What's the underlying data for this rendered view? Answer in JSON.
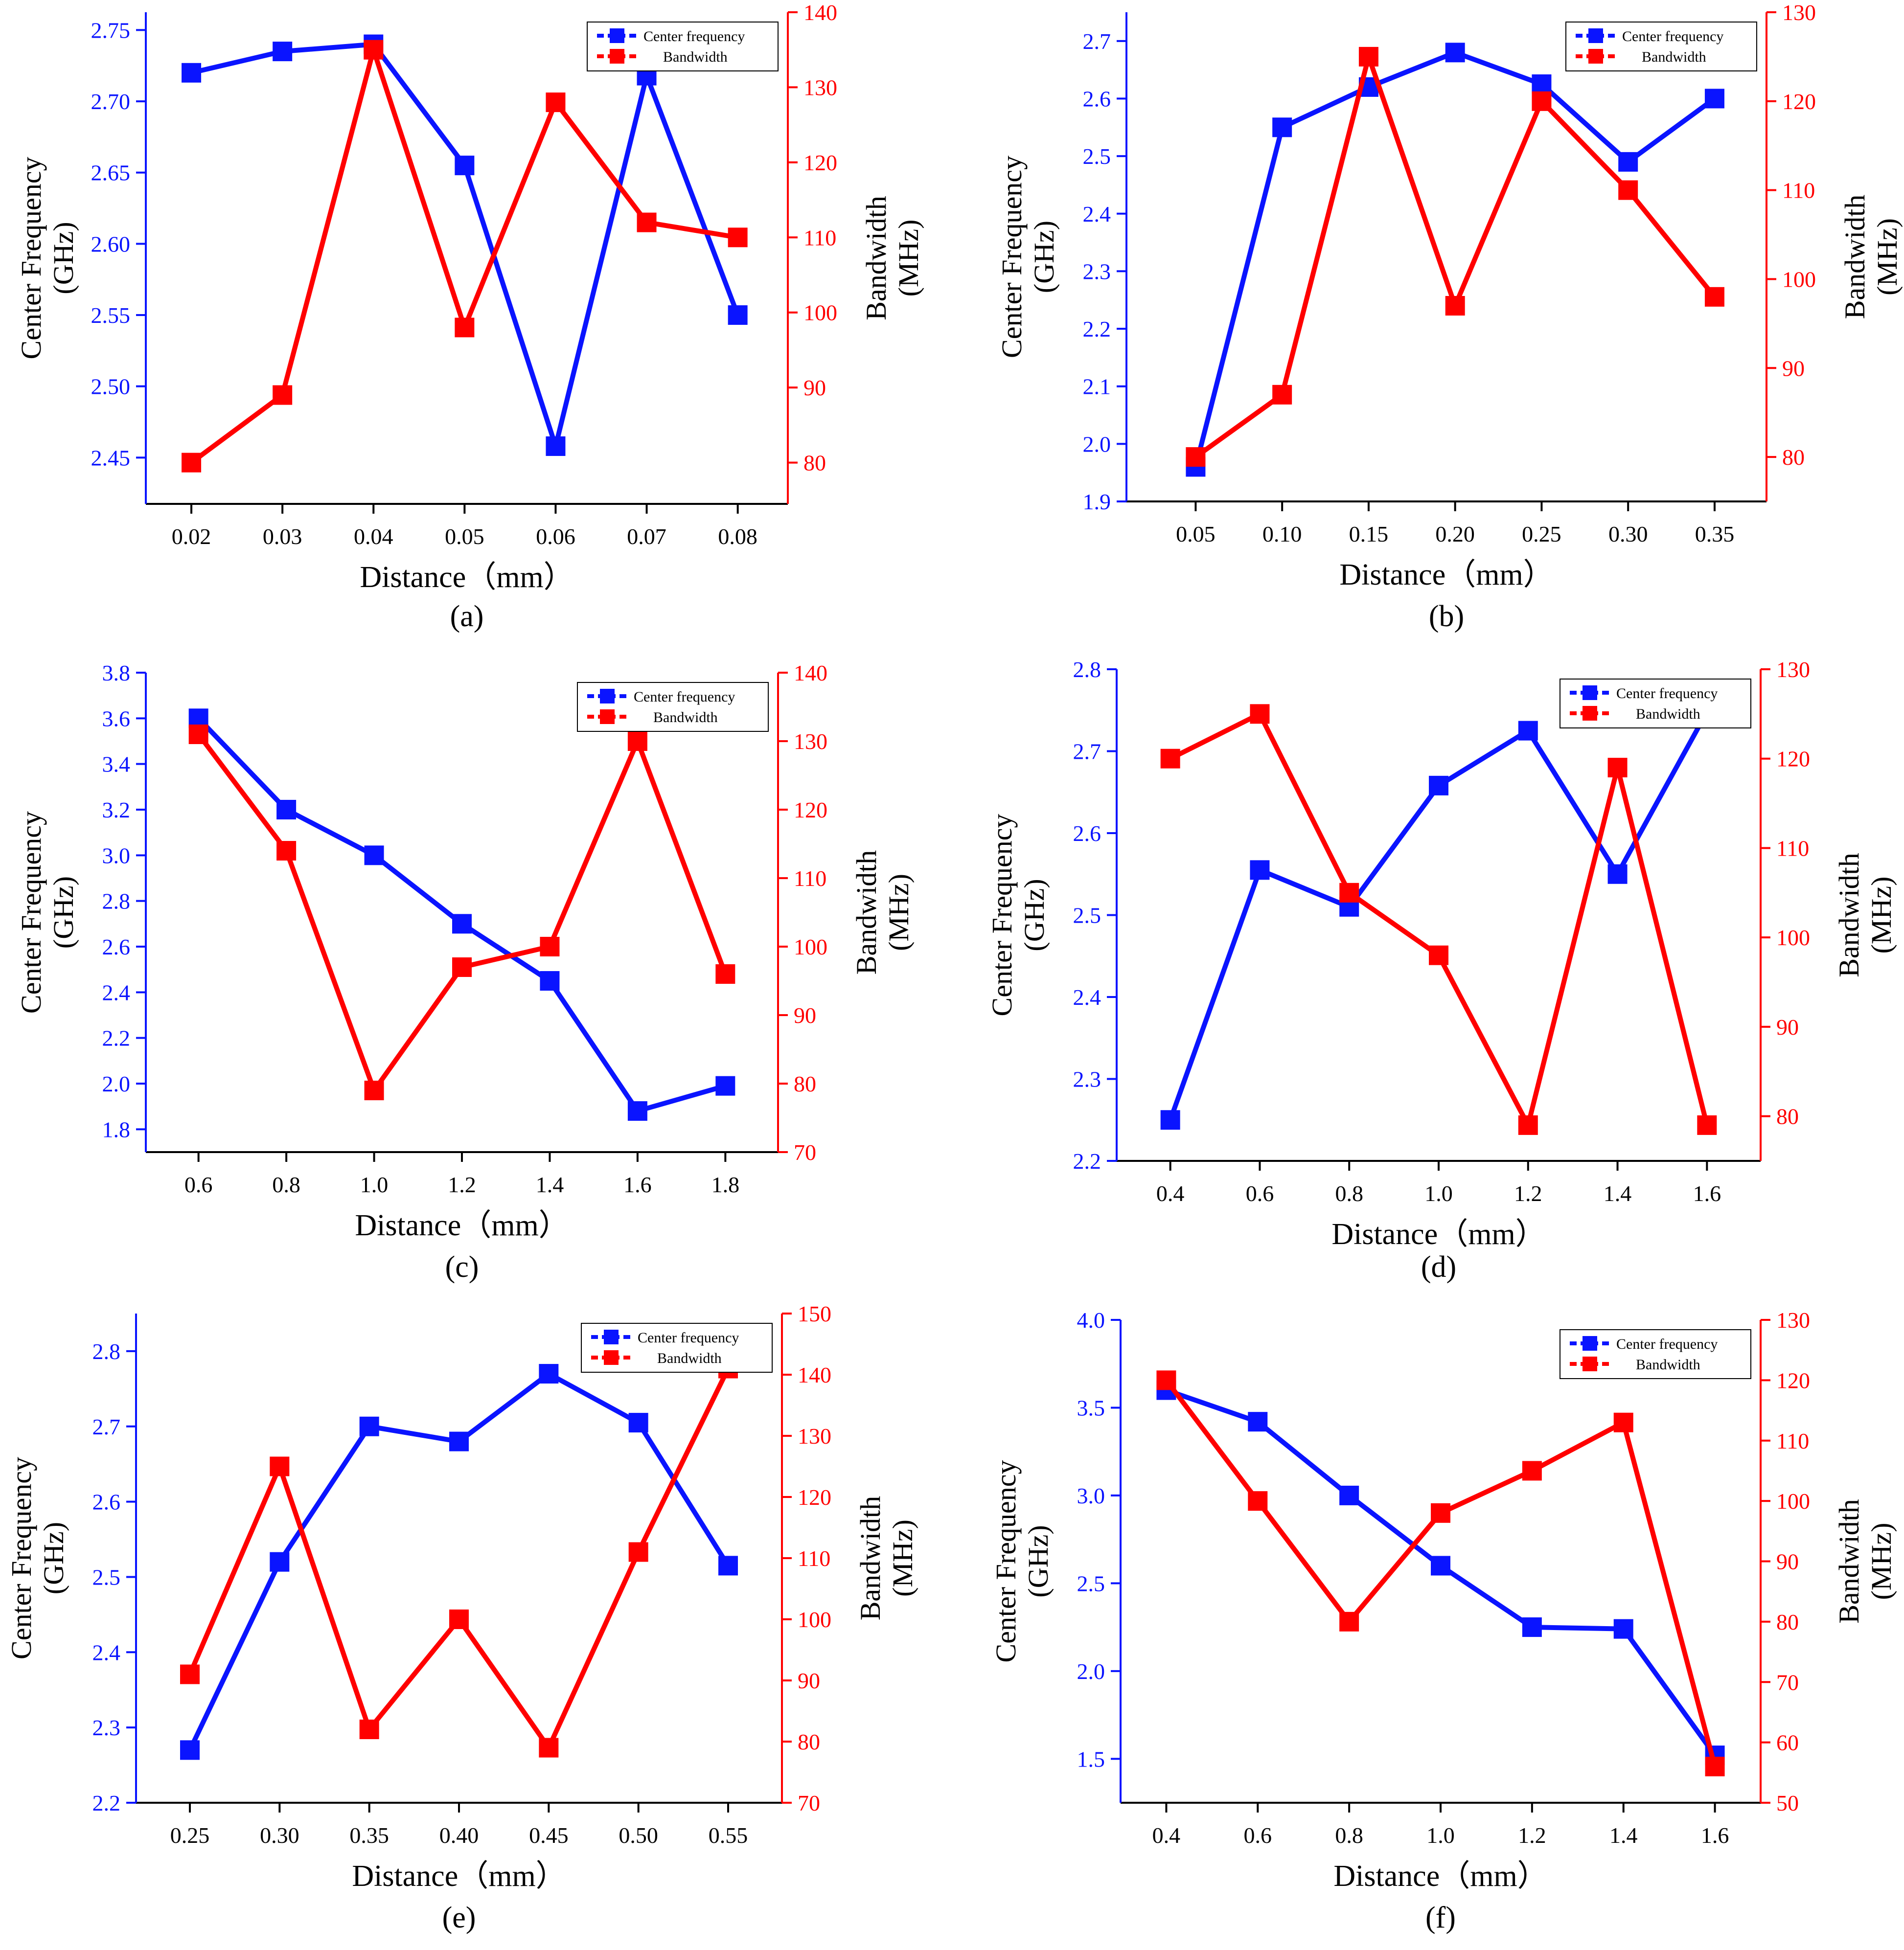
{
  "colors": {
    "blue": "#0a14ff",
    "red": "#ff0000",
    "axis": "#000000"
  },
  "chart_data": [
    {
      "type": "line",
      "panel_label": "(a)",
      "xlabel": "Distance（mm）",
      "ylabel_left": [
        "Center Frequency",
        "(GHz)"
      ],
      "ylabel_right": [
        "Bandwidth",
        "(MHz)"
      ],
      "x": [
        0.02,
        0.03,
        0.04,
        0.05,
        0.06,
        0.07,
        0.08
      ],
      "x_ticks": [
        "0.02",
        "0.03",
        "0.04",
        "0.05",
        "0.06",
        "0.07",
        "0.08"
      ],
      "xlim": [
        0.015,
        0.0855
      ],
      "ylim_left": [
        2.4175,
        2.7625
      ],
      "y_ticks_left": [
        "2.45",
        "2.50",
        "2.55",
        "2.60",
        "2.65",
        "2.70",
        "2.75"
      ],
      "ylim_right": [
        74.5,
        140
      ],
      "y_ticks_right": [
        "80",
        "90",
        "100",
        "110",
        "120",
        "130",
        "140"
      ],
      "legend": [
        "Center frequency",
        "Bandwidth"
      ],
      "series": [
        {
          "name": "Center frequency",
          "axis": "left",
          "color": "blue",
          "values": [
            2.72,
            2.735,
            2.74,
            2.655,
            2.458,
            2.718,
            2.55
          ]
        },
        {
          "name": "Bandwidth",
          "axis": "right",
          "color": "red",
          "values": [
            80,
            89,
            135,
            98,
            128,
            112,
            110
          ]
        }
      ]
    },
    {
      "type": "line",
      "panel_label": "(b)",
      "xlabel": "Distance（mm）",
      "ylabel_left": [
        "Center Frequency",
        "(GHz)"
      ],
      "ylabel_right": [
        "Bandwidth",
        "(MHz)"
      ],
      "x": [
        0.05,
        0.1,
        0.15,
        0.2,
        0.25,
        0.3,
        0.35
      ],
      "x_ticks": [
        "0.05",
        "0.10",
        "0.15",
        "0.20",
        "0.25",
        "0.30",
        "0.35"
      ],
      "xlim": [
        0.01,
        0.38
      ],
      "ylim_left": [
        1.9,
        2.75
      ],
      "y_ticks_left": [
        "1.9",
        "2.0",
        "2.1",
        "2.2",
        "2.3",
        "2.4",
        "2.5",
        "2.6",
        "2.7"
      ],
      "ylim_right": [
        75,
        130
      ],
      "y_ticks_right": [
        "80",
        "90",
        "100",
        "110",
        "120",
        "130"
      ],
      "legend": [
        "Center frequency",
        "Bandwidth"
      ],
      "series": [
        {
          "name": "Center frequency",
          "axis": "left",
          "color": "blue",
          "values": [
            1.96,
            2.55,
            2.62,
            2.68,
            2.625,
            2.49,
            2.6
          ]
        },
        {
          "name": "Bandwidth",
          "axis": "right",
          "color": "red",
          "values": [
            80,
            87,
            125,
            97,
            120,
            110,
            98
          ]
        }
      ]
    },
    {
      "type": "line",
      "panel_label": "(c)",
      "xlabel": "Distance（mm）",
      "ylabel_left": [
        "Center Frequency",
        "(GHz)"
      ],
      "ylabel_right": [
        "Bandwidth",
        "(MHz)"
      ],
      "x": [
        0.6,
        0.8,
        1.0,
        1.2,
        1.4,
        1.6,
        1.8
      ],
      "x_ticks": [
        "0.6",
        "0.8",
        "1.0",
        "1.2",
        "1.4",
        "1.6",
        "1.8"
      ],
      "xlim": [
        0.48,
        1.92
      ],
      "ylim_left": [
        1.7,
        3.8
      ],
      "y_ticks_left": [
        "1.8",
        "2.0",
        "2.2",
        "2.4",
        "2.6",
        "2.8",
        "3.0",
        "3.2",
        "3.4",
        "3.6",
        "3.8"
      ],
      "ylim_right": [
        70,
        140
      ],
      "y_ticks_right": [
        "70",
        "80",
        "90",
        "100",
        "110",
        "120",
        "130",
        "140"
      ],
      "legend": [
        "Center frequency",
        "Bandwidth"
      ],
      "series": [
        {
          "name": "Center frequency",
          "axis": "left",
          "color": "blue",
          "values": [
            3.6,
            3.2,
            3.0,
            2.7,
            2.45,
            1.88,
            1.99
          ]
        },
        {
          "name": "Bandwidth",
          "axis": "right",
          "color": "red",
          "values": [
            131,
            114,
            79,
            97,
            100,
            130,
            96
          ]
        }
      ]
    },
    {
      "type": "line",
      "panel_label": "(d)",
      "xlabel": "Distance（mm）",
      "ylabel_left": [
        "Center Frequency",
        "(GHz)"
      ],
      "ylabel_right": [
        "Bandwidth",
        "(MHz)"
      ],
      "x": [
        0.4,
        0.6,
        0.8,
        1.0,
        1.2,
        1.4,
        1.6
      ],
      "x_ticks": [
        "0.4",
        "0.6",
        "0.8",
        "1.0",
        "1.2",
        "1.4",
        "1.6"
      ],
      "xlim": [
        0.28,
        1.72
      ],
      "ylim_left": [
        2.2,
        2.8
      ],
      "y_ticks_left": [
        "2.2",
        "2.3",
        "2.4",
        "2.5",
        "2.6",
        "2.7",
        "2.8"
      ],
      "ylim_right": [
        75,
        130
      ],
      "y_ticks_right": [
        "80",
        "90",
        "100",
        "110",
        "120",
        "130"
      ],
      "legend": [
        "Center frequency",
        "Bandwidth"
      ],
      "series": [
        {
          "name": "Center frequency",
          "axis": "left",
          "color": "blue",
          "values": [
            2.25,
            2.555,
            2.51,
            2.658,
            2.725,
            2.55,
            2.748
          ]
        },
        {
          "name": "Bandwidth",
          "axis": "right",
          "color": "red",
          "values": [
            120,
            125,
            105,
            98,
            79,
            119,
            79
          ]
        }
      ]
    },
    {
      "type": "line",
      "panel_label": "(e)",
      "xlabel": "Distance（mm）",
      "ylabel_left": [
        "Center Frequency",
        "(GHz)"
      ],
      "ylabel_right": [
        "Bandwidth",
        "(MHz)"
      ],
      "x": [
        0.25,
        0.3,
        0.35,
        0.4,
        0.45,
        0.5,
        0.55
      ],
      "x_ticks": [
        "0.25",
        "0.30",
        "0.35",
        "0.40",
        "0.45",
        "0.50",
        "0.55"
      ],
      "xlim": [
        0.22,
        0.58
      ],
      "ylim_left": [
        2.2,
        2.85
      ],
      "y_ticks_left": [
        "2.2",
        "2.3",
        "2.4",
        "2.5",
        "2.6",
        "2.7",
        "2.8"
      ],
      "ylim_right": [
        70,
        150
      ],
      "y_ticks_right": [
        "70",
        "80",
        "90",
        "100",
        "110",
        "120",
        "130",
        "140",
        "150"
      ],
      "legend": [
        "Center frequency",
        "Bandwidth"
      ],
      "series": [
        {
          "name": "Center frequency",
          "axis": "left",
          "color": "blue",
          "values": [
            2.27,
            2.52,
            2.7,
            2.68,
            2.77,
            2.705,
            2.515
          ]
        },
        {
          "name": "Bandwidth",
          "axis": "right",
          "color": "red",
          "values": [
            91,
            125,
            82,
            100,
            79,
            111,
            141
          ]
        }
      ]
    },
    {
      "type": "line",
      "panel_label": "(f)",
      "xlabel": "Distance（mm）",
      "ylabel_left": [
        "Center Frequency",
        "(GHz)"
      ],
      "ylabel_right": [
        "Bandwidth",
        "(MHz)"
      ],
      "x": [
        0.4,
        0.6,
        0.8,
        1.0,
        1.2,
        1.4,
        1.6
      ],
      "x_ticks": [
        "0.4",
        "0.6",
        "0.8",
        "1.0",
        "1.2",
        "1.4",
        "1.6"
      ],
      "xlim": [
        0.3,
        1.7
      ],
      "ylim_left": [
        1.25,
        4.0
      ],
      "y_ticks_left": [
        "1.5",
        "2.0",
        "2.5",
        "3.0",
        "3.5",
        "4.0"
      ],
      "ylim_right": [
        50,
        130
      ],
      "y_ticks_right": [
        "50",
        "60",
        "70",
        "80",
        "90",
        "100",
        "110",
        "120",
        "130"
      ],
      "legend": [
        "Center frequency",
        "Bandwidth"
      ],
      "series": [
        {
          "name": "Center frequency",
          "axis": "left",
          "color": "blue",
          "values": [
            3.6,
            3.42,
            3.0,
            2.6,
            2.25,
            2.24,
            1.52
          ]
        },
        {
          "name": "Bandwidth",
          "axis": "right",
          "color": "red",
          "values": [
            120,
            100,
            80,
            98,
            105,
            113,
            56
          ]
        }
      ]
    }
  ]
}
